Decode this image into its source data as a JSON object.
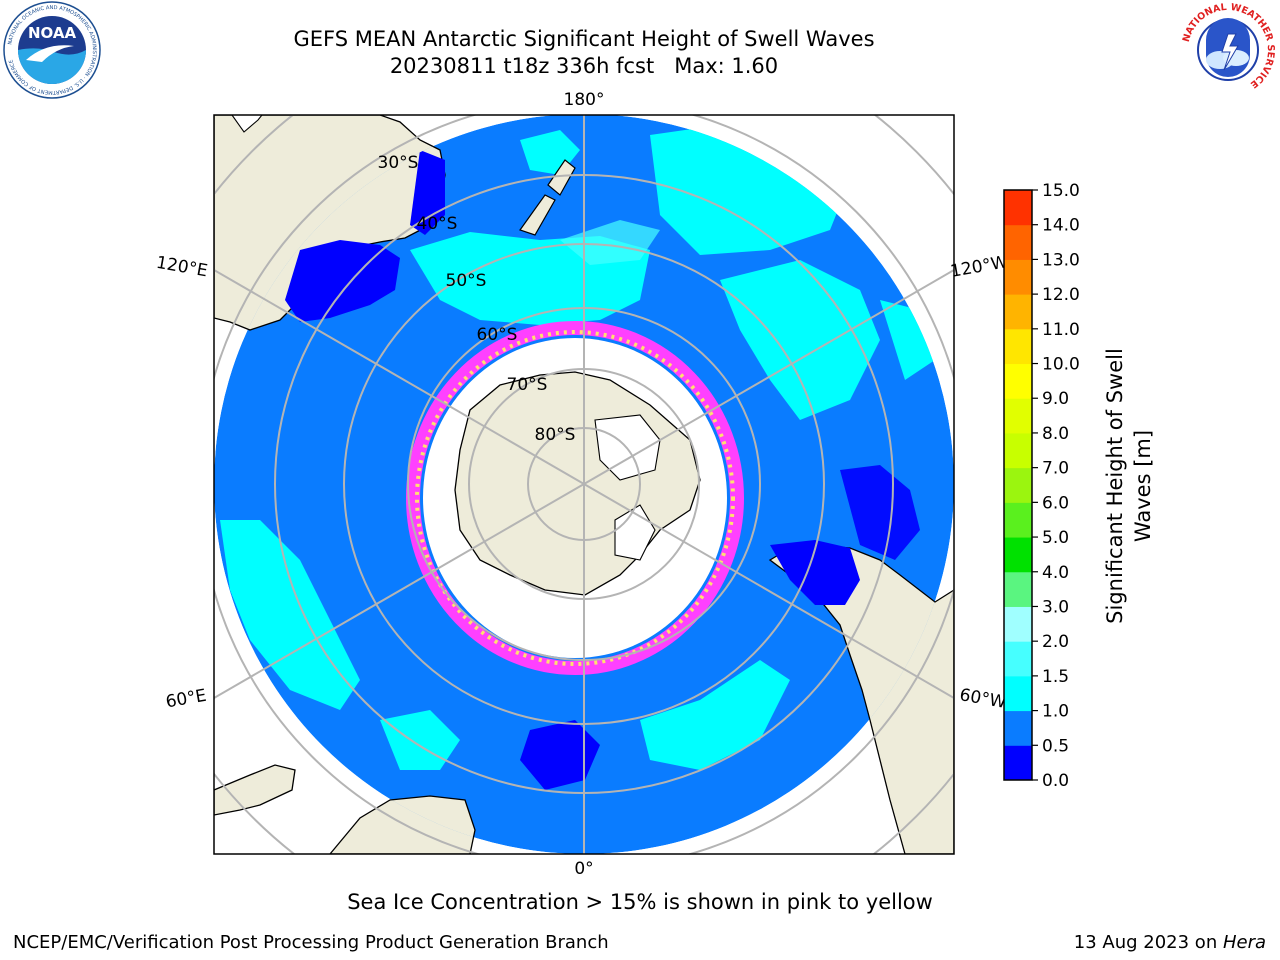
{
  "title": {
    "line1": "GEFS MEAN Antarctic Significant Height of Swell Waves",
    "line2": "20230811 t18z 336h fcst   Max: 1.60"
  },
  "map": {
    "projection": "south-polar-stereographic",
    "lon_labels": [
      "180°",
      "120°E",
      "120°W",
      "60°E",
      "60°W",
      "0°"
    ],
    "lat_labels": [
      "30°S",
      "40°S",
      "50°S",
      "60°S",
      "70°S",
      "80°S"
    ],
    "land_color": "#eeecda",
    "ocean_base_color": "#0a7cff",
    "grid_color": "#b4b4b4"
  },
  "colorbar": {
    "label_line1": "Significant Height of Swell",
    "label_line2": "Waves [m]",
    "ticks": [
      "0.0",
      "0.5",
      "1.0",
      "1.5",
      "2.0",
      "3.0",
      "4.0",
      "5.0",
      "6.0",
      "7.0",
      "8.0",
      "9.0",
      "10.0",
      "11.0",
      "12.0",
      "13.0",
      "14.0",
      "15.0"
    ],
    "colors": [
      "#0000ff",
      "#0a7cff",
      "#00ffff",
      "#46ffff",
      "#a0ffff",
      "#5af580",
      "#00e100",
      "#5af01e",
      "#9bf50f",
      "#c8ff00",
      "#e1ff00",
      "#ffff00",
      "#ffe600",
      "#ffb400",
      "#ff8c00",
      "#ff6400",
      "#ff3200"
    ]
  },
  "sea_ice_colors": [
    "#ff40ff",
    "#ffe070"
  ],
  "note": "Sea Ice Concentration > 15% is shown in pink to yellow",
  "footer": {
    "left": "NCEP/EMC/Verification Post Processing Product Generation Branch",
    "right_date": "13 Aug 2023 on ",
    "right_host": "Hera"
  },
  "logos": {
    "left": "NOAA",
    "left_ring": "NATIONAL OCEANIC AND ATMOSPHERIC ADMINISTRATION · U.S. DEPARTMENT OF COMMERCE",
    "right_ring": "NATIONAL WEATHER SERVICE"
  }
}
